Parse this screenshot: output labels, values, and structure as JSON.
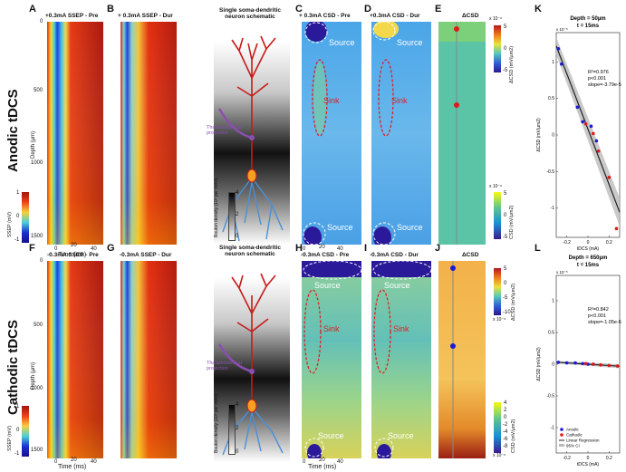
{
  "figure": {
    "row_labels": {
      "anodic": "Anodic tDCS",
      "cathodic": "Cathodic tDCS"
    },
    "panel_letters": [
      "A",
      "B",
      "C",
      "D",
      "E",
      "K",
      "F",
      "G",
      "H",
      "I",
      "J",
      "L"
    ],
    "titles": {
      "A": "+0.3mA   SSEP - Pre",
      "B": "+ 0.3mA   SSEP - Dur",
      "C": "+ 0.3mA   CSD - Pre",
      "D": "+0.3mA   CSD - Dur",
      "E": "ΔCSD",
      "F": "-0.3mA   SSEP - Pre",
      "G": "-0.3mA   SSEP - Dur",
      "H": "-0.3mA   CSD - Pre",
      "I": "-0.3mA   CSD - Dur",
      "J": "ΔCSD",
      "schematic": "Single soma-dendritic neuron schematic"
    },
    "depth_label": "Depth (µm)",
    "depth_ticks": [
      "0",
      "500",
      "1000",
      "1500"
    ],
    "time_label": "Time   (ms)",
    "time_ticks": [
      "0",
      "20",
      "40"
    ],
    "ssep_cbar": {
      "label": "SSEP (mV)",
      "ticks": [
        "1",
        "0",
        "-1"
      ]
    },
    "bouton": {
      "label": "Bouton density (10³ per mm³)",
      "ticks": [
        "4",
        "2",
        "0"
      ]
    },
    "thalamo_label": "Thalamocortical projection",
    "csd_annotations": {
      "source": "Source",
      "sink": "Sink"
    },
    "colorbars": {
      "E_top": {
        "label": "ΔCSD (mV/µm2)",
        "ticks": [
          "5",
          "0",
          "-5"
        ],
        "exp": "x 10⁻⁶"
      },
      "E_bottom": {
        "label": "CSD (mV/µm2)",
        "ticks": [
          "5",
          "0",
          "-5"
        ],
        "exp": "x 10⁻⁶"
      },
      "J_top": {
        "label": "ΔCSD (mV/µm2)",
        "ticks": [
          "5",
          "0",
          "-5",
          "-10"
        ],
        "exp": "x 10⁻⁶"
      },
      "J_bottom": {
        "label": "CSD (mV/µm2)",
        "ticks": [
          "4",
          "2",
          "0",
          "-2",
          "-4",
          "-6",
          "-8"
        ],
        "exp": "x 10⁻⁶"
      }
    },
    "colors": {
      "anodic_point": "#1a1ad8",
      "cathodic_point": "#e01818",
      "regression": "#222222",
      "ci": "#bbbbbb",
      "sink_ellipse": "#dd2222"
    }
  },
  "chart_data": [
    {
      "panel": "K",
      "type": "scatter",
      "title": "Depth = 50µm",
      "subtitle": "t = 15ms",
      "xlabel": "tDCS (mA)",
      "ylabel": "ΔCSD (mV/µm2)",
      "xlim": [
        -0.3,
        0.3
      ],
      "ylim": [
        -1.4,
        1.4
      ],
      "y_exponent": "x 10⁻⁵",
      "xticks": [
        "-0.2",
        "0",
        "0.2"
      ],
      "yticks": [
        "-1",
        "-0.5",
        "0",
        "0.5",
        "1"
      ],
      "stats": [
        "R²=0.976",
        "p<0.001",
        "slope=-3.79e-5"
      ],
      "series": [
        {
          "name": "Anodic",
          "color": "#1a1ad8",
          "x": [
            -0.28,
            -0.25,
            -0.1,
            -0.05,
            0.03,
            0.08
          ],
          "y": [
            1.18,
            0.97,
            0.38,
            0.18,
            0.12,
            -0.08
          ]
        },
        {
          "name": "Cathodic",
          "color": "#e01818",
          "x": [
            -0.02,
            0.05,
            0.1,
            0.2,
            0.27
          ],
          "y": [
            0.15,
            0.02,
            -0.22,
            -0.58,
            -1.28
          ]
        }
      ],
      "regression": {
        "slope": -3.79,
        "intercept": 0.08,
        "ci_halfwidth": 0.12
      }
    },
    {
      "panel": "L",
      "type": "scatter",
      "title": "Depth = 650µm",
      "subtitle": "t = 15ms",
      "xlabel": "tDCS (mA)",
      "ylabel": "ΔCSD (mV/µm2)",
      "xlim": [
        -0.3,
        0.3
      ],
      "ylim": [
        -1.4,
        1.4
      ],
      "y_exponent": "x 10⁻⁵",
      "xticks": [
        "-0.2",
        "0",
        "0.2"
      ],
      "yticks": [
        "-1",
        "-0.5",
        "0",
        "0.5",
        "1"
      ],
      "stats": [
        "R²=0.842",
        "p<0.001",
        "slope=-1.05e-6"
      ],
      "series": [
        {
          "name": "Anodic",
          "color": "#1a1ad8",
          "x": [
            -0.28,
            -0.2,
            -0.12,
            -0.05,
            0.0,
            0.05
          ],
          "y": [
            0.03,
            0.02,
            0.02,
            0.01,
            0.0,
            0.0
          ]
        },
        {
          "name": "Cathodic",
          "color": "#e01818",
          "x": [
            -0.02,
            0.05,
            0.12,
            0.2,
            0.28
          ],
          "y": [
            0.01,
            0.0,
            -0.01,
            -0.02,
            -0.03
          ]
        }
      ],
      "regression": {
        "slope": -0.105,
        "intercept": 0.0,
        "ci_halfwidth": 0.02
      },
      "legend": {
        "position": "bottom-left",
        "entries": [
          "Anodic",
          "Cathodic",
          "Linear Regression",
          "95% CI"
        ]
      }
    }
  ]
}
